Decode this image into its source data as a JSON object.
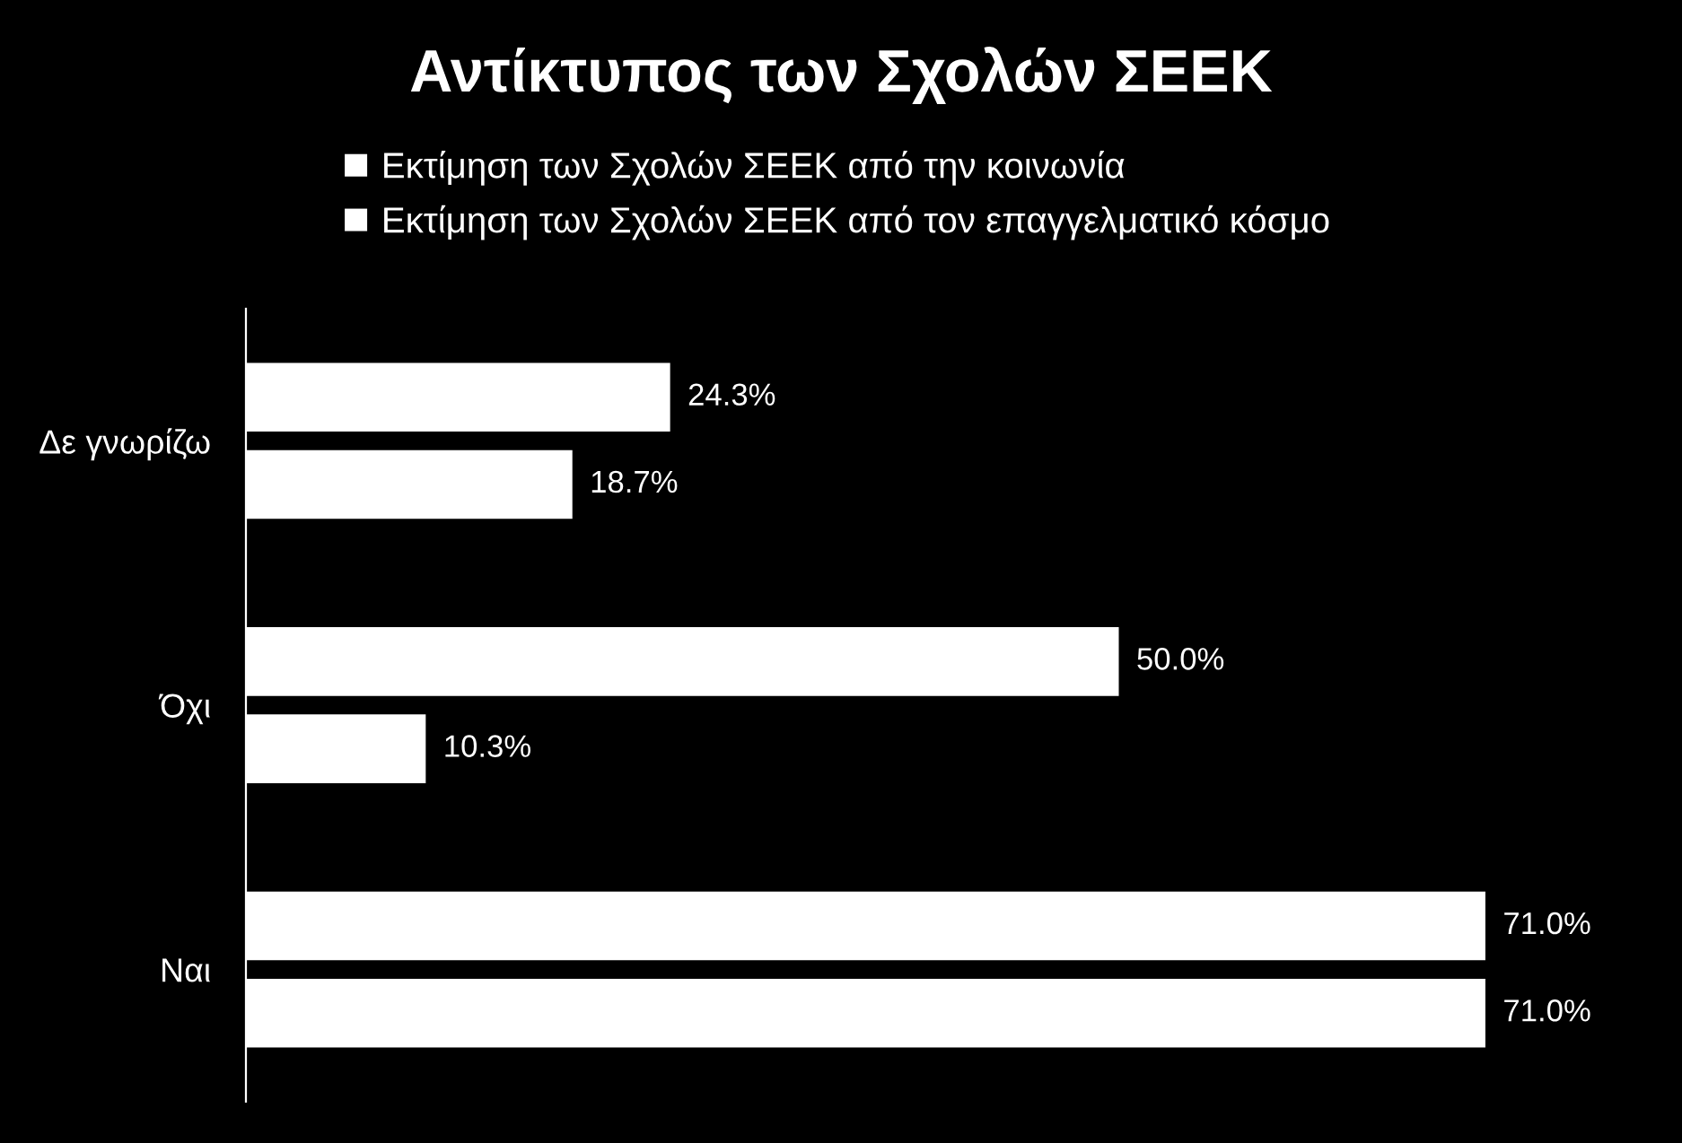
{
  "chart_data": {
    "type": "bar",
    "orientation": "horizontal",
    "title": "Αντίκτυπος των Σχολών ΣΕΕΚ",
    "categories": [
      "Δε γνωρίζω",
      "Όχι",
      "Ναι"
    ],
    "series": [
      {
        "name": "Εκτίμηση των Σχολών ΣΕΕΚ από την κοινωνία",
        "color": "#ffffff",
        "values": [
          24.3,
          50.0,
          71.0
        ],
        "value_labels": [
          "24.3%",
          "50.0%",
          "71.0%"
        ]
      },
      {
        "name": "Εκτίμηση των Σχολών ΣΕΕΚ από τον επαγγελματικό κόσμο",
        "color": "#ffffff",
        "values": [
          18.7,
          10.3,
          71.0
        ],
        "value_labels": [
          "18.7%",
          "10.3%",
          "71.0%"
        ]
      }
    ],
    "tick_labels": "y",
    "grid": false,
    "legend": "top"
  }
}
